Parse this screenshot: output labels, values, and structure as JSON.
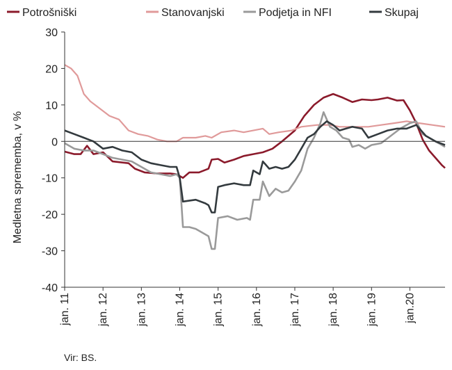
{
  "chart_data": {
    "type": "line",
    "xlabel": "",
    "ylabel": "Medletna sprememba, v %",
    "ylim": [
      -40,
      30
    ],
    "yticks": [
      -40,
      -30,
      -20,
      -10,
      0,
      10,
      20,
      30
    ],
    "x_tick_labels": [
      "jan. 11",
      "jan. 12",
      "jan. 13",
      "jan. 14",
      "jan. 15",
      "jan. 16",
      "jan. 17",
      "jan. 18",
      "jan. 19",
      "jan.20"
    ],
    "x_tick_dates": [
      "2011-01",
      "2012-01",
      "2013-01",
      "2014-01",
      "2015-01",
      "2016-01",
      "2017-01",
      "2018-01",
      "2019-01",
      "2020-01"
    ],
    "xlim": [
      "2011-01",
      "2020-12"
    ],
    "grid": false,
    "legend_position": "top",
    "series": [
      {
        "name": "Potrošniški",
        "color": "#8b1a2b",
        "width": 2.6,
        "points": [
          [
            "2011-01",
            -2.8
          ],
          [
            "2011-04",
            -3.5
          ],
          [
            "2011-06",
            -3.5
          ],
          [
            "2011-08",
            -1.2
          ],
          [
            "2011-10",
            -3.5
          ],
          [
            "2012-01",
            -3.0
          ],
          [
            "2012-04",
            -5.5
          ],
          [
            "2012-09",
            -6.0
          ],
          [
            "2012-11",
            -7.5
          ],
          [
            "2013-02",
            -8.5
          ],
          [
            "2013-06",
            -8.8
          ],
          [
            "2013-10",
            -8.8
          ],
          [
            "2013-12",
            -9.0
          ],
          [
            "2014-02",
            -10.0
          ],
          [
            "2014-04",
            -8.5
          ],
          [
            "2014-07",
            -8.5
          ],
          [
            "2014-10",
            -7.5
          ],
          [
            "2014-11",
            -5.0
          ],
          [
            "2015-01",
            -4.8
          ],
          [
            "2015-03",
            -5.8
          ],
          [
            "2015-06",
            -5.0
          ],
          [
            "2015-09",
            -4.0
          ],
          [
            "2015-12",
            -3.5
          ],
          [
            "2016-03",
            -3.0
          ],
          [
            "2016-06",
            -2.0
          ],
          [
            "2016-09",
            0.0
          ],
          [
            "2017-01",
            3.0
          ],
          [
            "2017-04",
            7.0
          ],
          [
            "2017-07",
            10.0
          ],
          [
            "2017-10",
            12.0
          ],
          [
            "2018-01",
            13.0
          ],
          [
            "2018-04",
            12.0
          ],
          [
            "2018-07",
            10.8
          ],
          [
            "2018-10",
            11.5
          ],
          [
            "2019-01",
            11.3
          ],
          [
            "2019-03",
            11.5
          ],
          [
            "2019-06",
            12.0
          ],
          [
            "2019-09",
            11.2
          ],
          [
            "2019-11",
            11.3
          ],
          [
            "2020-01",
            8.5
          ],
          [
            "2020-03",
            5.0
          ],
          [
            "2020-05",
            0.5
          ],
          [
            "2020-07",
            -2.5
          ],
          [
            "2020-09",
            -4.5
          ],
          [
            "2020-11",
            -6.5
          ],
          [
            "2020-12",
            -7.3
          ]
        ]
      },
      {
        "name": "Stanovanjski",
        "color": "#e09a9a",
        "width": 2.2,
        "points": [
          [
            "2011-01",
            21.0
          ],
          [
            "2011-03",
            20.0
          ],
          [
            "2011-05",
            18.0
          ],
          [
            "2011-07",
            13.0
          ],
          [
            "2011-09",
            11.0
          ],
          [
            "2011-12",
            9.0
          ],
          [
            "2012-03",
            7.0
          ],
          [
            "2012-06",
            6.0
          ],
          [
            "2012-09",
            3.0
          ],
          [
            "2012-12",
            2.0
          ],
          [
            "2013-03",
            1.5
          ],
          [
            "2013-06",
            0.5
          ],
          [
            "2013-09",
            0.0
          ],
          [
            "2013-12",
            0.0
          ],
          [
            "2014-02",
            1.0
          ],
          [
            "2014-06",
            1.0
          ],
          [
            "2014-09",
            1.5
          ],
          [
            "2014-11",
            1.0
          ],
          [
            "2015-02",
            2.5
          ],
          [
            "2015-06",
            3.0
          ],
          [
            "2015-09",
            2.5
          ],
          [
            "2015-12",
            3.0
          ],
          [
            "2016-03",
            3.5
          ],
          [
            "2016-05",
            2.0
          ],
          [
            "2016-08",
            2.5
          ],
          [
            "2016-12",
            3.0
          ],
          [
            "2017-03",
            4.0
          ],
          [
            "2017-08",
            4.5
          ],
          [
            "2017-12",
            4.5
          ],
          [
            "2018-03",
            4.0
          ],
          [
            "2018-08",
            4.0
          ],
          [
            "2018-12",
            4.0
          ],
          [
            "2019-04",
            4.5
          ],
          [
            "2019-08",
            5.0
          ],
          [
            "2019-12",
            5.5
          ],
          [
            "2020-04",
            5.0
          ],
          [
            "2020-08",
            4.5
          ],
          [
            "2020-12",
            4.0
          ]
        ]
      },
      {
        "name": "Podjetja in NFI",
        "color": "#9a9a9a",
        "width": 2.6,
        "points": [
          [
            "2011-01",
            -0.5
          ],
          [
            "2011-04",
            -2.0
          ],
          [
            "2011-07",
            -2.5
          ],
          [
            "2011-10",
            -2.5
          ],
          [
            "2012-01",
            -3.5
          ],
          [
            "2012-04",
            -4.5
          ],
          [
            "2012-07",
            -5.0
          ],
          [
            "2012-10",
            -5.5
          ],
          [
            "2013-01",
            -7.0
          ],
          [
            "2013-04",
            -8.5
          ],
          [
            "2013-07",
            -9.0
          ],
          [
            "2013-10",
            -9.5
          ],
          [
            "2013-12",
            -9.0
          ],
          [
            "2014-01",
            -10.0
          ],
          [
            "2014-02",
            -23.5
          ],
          [
            "2014-04",
            -23.5
          ],
          [
            "2014-06",
            -24.0
          ],
          [
            "2014-08",
            -25.0
          ],
          [
            "2014-10",
            -26.0
          ],
          [
            "2014-11",
            -29.5
          ],
          [
            "2014-12",
            -29.5
          ],
          [
            "2015-01",
            -21.0
          ],
          [
            "2015-04",
            -20.5
          ],
          [
            "2015-07",
            -21.5
          ],
          [
            "2015-10",
            -21.0
          ],
          [
            "2015-11",
            -21.5
          ],
          [
            "2015-12",
            -16.0
          ],
          [
            "2016-02",
            -16.0
          ],
          [
            "2016-03",
            -11.0
          ],
          [
            "2016-05",
            -15.0
          ],
          [
            "2016-07",
            -13.0
          ],
          [
            "2016-09",
            -14.0
          ],
          [
            "2016-11",
            -13.5
          ],
          [
            "2017-01",
            -11.0
          ],
          [
            "2017-03",
            -8.0
          ],
          [
            "2017-05",
            -2.0
          ],
          [
            "2017-07",
            1.0
          ],
          [
            "2017-09",
            5.0
          ],
          [
            "2017-10",
            8.0
          ],
          [
            "2017-12",
            4.0
          ],
          [
            "2018-02",
            3.0
          ],
          [
            "2018-04",
            1.0
          ],
          [
            "2018-06",
            0.5
          ],
          [
            "2018-07",
            -1.5
          ],
          [
            "2018-09",
            -1.0
          ],
          [
            "2018-11",
            -2.0
          ],
          [
            "2019-01",
            -1.0
          ],
          [
            "2019-04",
            -0.5
          ],
          [
            "2019-07",
            1.5
          ],
          [
            "2019-10",
            3.5
          ],
          [
            "2020-01",
            5.0
          ],
          [
            "2020-03",
            5.5
          ],
          [
            "2020-05",
            2.0
          ],
          [
            "2020-07",
            1.0
          ],
          [
            "2020-09",
            0.0
          ],
          [
            "2020-12",
            -1.5
          ]
        ]
      },
      {
        "name": "Skupaj",
        "color": "#333a3e",
        "width": 2.6,
        "points": [
          [
            "2011-01",
            3.0
          ],
          [
            "2011-04",
            2.0
          ],
          [
            "2011-07",
            1.0
          ],
          [
            "2011-10",
            0.0
          ],
          [
            "2012-01",
            -2.0
          ],
          [
            "2012-04",
            -1.5
          ],
          [
            "2012-07",
            -2.5
          ],
          [
            "2012-10",
            -3.0
          ],
          [
            "2013-01",
            -5.0
          ],
          [
            "2013-04",
            -6.0
          ],
          [
            "2013-07",
            -6.5
          ],
          [
            "2013-10",
            -7.0
          ],
          [
            "2013-12",
            -7.0
          ],
          [
            "2014-01",
            -10.0
          ],
          [
            "2014-02",
            -16.5
          ],
          [
            "2014-06",
            -16.0
          ],
          [
            "2014-09",
            -17.0
          ],
          [
            "2014-10",
            -17.5
          ],
          [
            "2014-11",
            -19.5
          ],
          [
            "2014-12",
            -19.5
          ],
          [
            "2015-01",
            -12.5
          ],
          [
            "2015-03",
            -12.0
          ],
          [
            "2015-06",
            -11.5
          ],
          [
            "2015-09",
            -12.0
          ],
          [
            "2015-11",
            -12.0
          ],
          [
            "2015-12",
            -8.0
          ],
          [
            "2016-02",
            -9.0
          ],
          [
            "2016-03",
            -5.5
          ],
          [
            "2016-05",
            -7.5
          ],
          [
            "2016-07",
            -7.0
          ],
          [
            "2016-09",
            -7.5
          ],
          [
            "2016-11",
            -7.0
          ],
          [
            "2017-01",
            -5.0
          ],
          [
            "2017-03",
            -2.0
          ],
          [
            "2017-05",
            1.0
          ],
          [
            "2017-07",
            2.0
          ],
          [
            "2017-09",
            4.0
          ],
          [
            "2017-11",
            5.5
          ],
          [
            "2018-01",
            4.5
          ],
          [
            "2018-03",
            3.0
          ],
          [
            "2018-05",
            3.5
          ],
          [
            "2018-07",
            4.0
          ],
          [
            "2018-10",
            3.5
          ],
          [
            "2018-12",
            1.0
          ],
          [
            "2019-03",
            2.0
          ],
          [
            "2019-06",
            3.0
          ],
          [
            "2019-09",
            3.5
          ],
          [
            "2019-12",
            3.5
          ],
          [
            "2020-03",
            4.5
          ],
          [
            "2020-06",
            1.5
          ],
          [
            "2020-09",
            0.0
          ],
          [
            "2020-12",
            -1.0
          ]
        ]
      }
    ]
  },
  "source": "Vir: BS."
}
